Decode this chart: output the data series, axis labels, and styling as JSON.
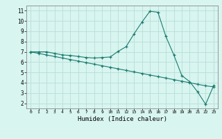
{
  "line1_x": [
    0,
    1,
    2,
    3,
    4,
    5,
    6,
    7,
    8,
    9,
    10,
    11,
    12,
    13,
    14,
    15,
    16,
    17,
    18,
    19,
    20,
    21,
    22,
    23
  ],
  "line1_y": [
    7.0,
    7.0,
    7.0,
    6.85,
    6.7,
    6.65,
    6.55,
    6.45,
    6.4,
    6.45,
    6.5,
    7.05,
    7.5,
    8.75,
    9.9,
    10.95,
    10.85,
    8.5,
    6.7,
    4.7,
    4.1,
    3.1,
    1.9,
    3.7
  ],
  "line2_x": [
    0,
    1,
    2,
    3,
    4,
    5,
    6,
    7,
    8,
    9,
    10,
    11,
    12,
    13,
    14,
    15,
    16,
    17,
    18,
    19,
    20,
    21,
    22,
    23
  ],
  "line2_y": [
    7.0,
    6.85,
    6.7,
    6.55,
    6.4,
    6.25,
    6.1,
    5.95,
    5.8,
    5.65,
    5.5,
    5.35,
    5.2,
    5.05,
    4.9,
    4.75,
    4.6,
    4.45,
    4.3,
    4.15,
    4.0,
    3.85,
    3.7,
    3.6
  ],
  "line_color": "#1a7a6e",
  "bg_color": "#d8f5f0",
  "grid_color": "#b8ddd8",
  "xlabel": "Humidex (Indice chaleur)",
  "ylim": [
    1.5,
    11.5
  ],
  "xlim": [
    -0.5,
    23.5
  ],
  "yticks": [
    2,
    3,
    4,
    5,
    6,
    7,
    8,
    9,
    10,
    11
  ],
  "xticks": [
    0,
    1,
    2,
    3,
    4,
    5,
    6,
    7,
    8,
    9,
    10,
    11,
    12,
    13,
    14,
    15,
    16,
    17,
    18,
    19,
    20,
    21,
    22,
    23
  ],
  "marker": "+"
}
